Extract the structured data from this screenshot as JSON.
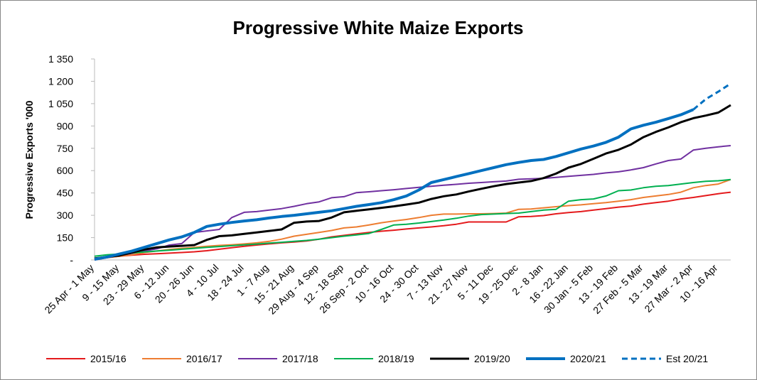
{
  "chart_data": {
    "type": "line",
    "title": "Progressive White Maize Exports",
    "y_label": "Progressive Exports '000",
    "categories": [
      "25 Apr - 1 May",
      null,
      "9 - 15 May",
      null,
      "23 - 29 May",
      null,
      "6 - 12 Jun",
      null,
      "20 - 26 Jun",
      null,
      "4 - 10 Jul",
      null,
      "18 - 24 Jul",
      null,
      "1 - 7 Aug",
      null,
      "15 - 21 Aug",
      null,
      "29 Aug - 4 Sep",
      null,
      "12 - 18 Sep",
      null,
      "26 Sep - 2 Oct",
      null,
      "10 - 16 Oct",
      null,
      "24 - 30 Oct",
      null,
      "7 - 13 Nov",
      null,
      "21 - 27 Nov",
      null,
      "5 - 11 Dec",
      null,
      "19 - 25 Dec",
      null,
      "2 - 8 Jan",
      null,
      "16 - 22 Jan",
      null,
      "30 Jan - 5 Feb",
      null,
      "13 - 19 Feb",
      null,
      "27 Feb - 5 Mar",
      null,
      "13 - 19 Mar",
      null,
      "27 Mar - 2 Apr",
      null,
      "10 - 16 Apr",
      null
    ],
    "ylim": [
      0,
      1350
    ],
    "yticks": [
      {
        "value": 0,
        "label": "-"
      },
      150,
      300,
      450,
      600,
      750,
      900,
      {
        "value": 1050,
        "label": "1 050"
      },
      {
        "value": 1200,
        "label": "1 200"
      },
      {
        "value": 1350,
        "label": "1 350"
      }
    ],
    "grid": false,
    "legend": "bottom",
    "series": [
      {
        "name": "2015/16",
        "color": "#e41a1c",
        "width": 2,
        "values": [
          10,
          18,
          25,
          32,
          38,
          42,
          46,
          50,
          55,
          62,
          72,
          82,
          92,
          100,
          108,
          115,
          120,
          128,
          140,
          155,
          165,
          175,
          185,
          193,
          200,
          208,
          215,
          222,
          230,
          240,
          255,
          255,
          255,
          255,
          290,
          292,
          298,
          310,
          318,
          325,
          335,
          345,
          355,
          362,
          375,
          385,
          395,
          410,
          420,
          432,
          445,
          455
        ]
      },
      {
        "name": "2016/17",
        "color": "#ed7d31",
        "width": 2,
        "values": [
          5,
          15,
          25,
          35,
          50,
          60,
          70,
          78,
          85,
          92,
          98,
          102,
          108,
          115,
          125,
          140,
          160,
          172,
          185,
          198,
          215,
          222,
          235,
          250,
          262,
          272,
          285,
          300,
          308,
          308,
          310,
          310,
          312,
          315,
          340,
          342,
          350,
          358,
          365,
          370,
          378,
          385,
          395,
          405,
          420,
          430,
          440,
          455,
          485,
          500,
          510,
          540
        ]
      },
      {
        "name": "2017/18",
        "color": "#7030a0",
        "width": 2,
        "values": [
          0,
          15,
          30,
          45,
          60,
          75,
          100,
          110,
          185,
          195,
          205,
          285,
          320,
          325,
          335,
          345,
          360,
          378,
          390,
          418,
          425,
          452,
          458,
          465,
          472,
          480,
          488,
          495,
          502,
          508,
          515,
          520,
          525,
          530,
          542,
          545,
          548,
          555,
          562,
          568,
          575,
          585,
          592,
          605,
          620,
          645,
          668,
          678,
          738,
          750,
          760,
          768
        ]
      },
      {
        "name": "2018/19",
        "color": "#00b050",
        "width": 2,
        "values": [
          25,
          35,
          40,
          47,
          54,
          60,
          66,
          72,
          78,
          85,
          90,
          96,
          101,
          107,
          113,
          119,
          125,
          131,
          140,
          150,
          160,
          168,
          178,
          205,
          235,
          240,
          248,
          258,
          268,
          280,
          295,
          305,
          308,
          312,
          315,
          325,
          335,
          340,
          395,
          405,
          410,
          430,
          465,
          470,
          485,
          495,
          500,
          510,
          520,
          528,
          532,
          540
        ]
      },
      {
        "name": "2019/20",
        "color": "#000000",
        "width": 3,
        "values": [
          10,
          20,
          30,
          50,
          70,
          85,
          90,
          95,
          100,
          135,
          160,
          165,
          175,
          185,
          195,
          205,
          250,
          258,
          262,
          285,
          320,
          330,
          340,
          350,
          360,
          372,
          385,
          410,
          428,
          440,
          460,
          478,
          495,
          510,
          520,
          530,
          550,
          580,
          620,
          645,
          680,
          715,
          740,
          775,
          825,
          860,
          890,
          925,
          952,
          970,
          990,
          1040
        ]
      },
      {
        "name": "2020/21",
        "color": "#0070c0",
        "width": 4,
        "values": [
          5,
          20,
          40,
          60,
          85,
          110,
          135,
          155,
          185,
          225,
          240,
          252,
          262,
          270,
          282,
          292,
          300,
          310,
          320,
          330,
          345,
          360,
          372,
          385,
          405,
          430,
          470,
          520,
          540,
          560,
          580,
          600,
          620,
          640,
          655,
          668,
          675,
          695,
          720,
          745,
          765,
          790,
          825,
          880,
          905,
          925,
          950,
          975,
          1010,
          null,
          null,
          null
        ]
      },
      {
        "name": "Est 20/21",
        "color": "#0070c0",
        "width": 3,
        "dashed": true,
        "values": [
          null,
          null,
          null,
          null,
          null,
          null,
          null,
          null,
          null,
          null,
          null,
          null,
          null,
          null,
          null,
          null,
          null,
          null,
          null,
          null,
          null,
          null,
          null,
          null,
          null,
          null,
          null,
          null,
          null,
          null,
          null,
          null,
          null,
          null,
          null,
          null,
          null,
          null,
          null,
          null,
          null,
          null,
          null,
          null,
          null,
          null,
          null,
          null,
          1010,
          1080,
          1130,
          1185
        ]
      }
    ]
  }
}
